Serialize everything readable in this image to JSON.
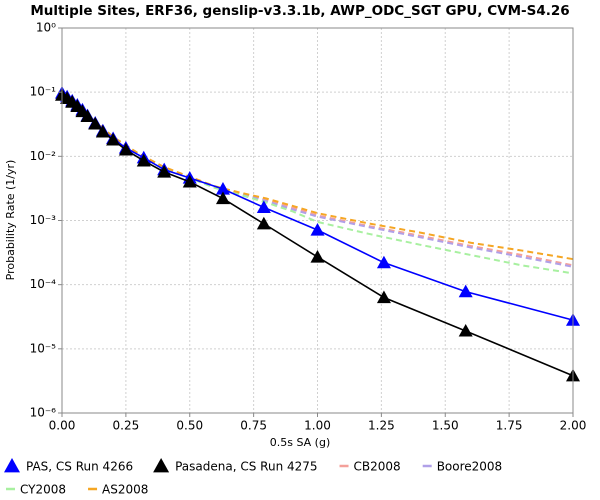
{
  "chart_data": {
    "type": "line",
    "title": "Multiple Sites, ERF36, genslip-v3.3.1b, AWP_ODC_SGT GPU, CVM-S4.26",
    "x_label": "0.5s SA (g)",
    "y_label": "Probability Rate (1/yr)",
    "log_y": true,
    "grid": true,
    "legend": "bottom",
    "xlim": [
      0,
      2
    ],
    "xticks": [
      {
        "value": 0,
        "label": "0.00"
      },
      {
        "value": 0.25,
        "label": "0.25"
      },
      {
        "value": 0.5,
        "label": "0.50"
      },
      {
        "value": 0.75,
        "label": "0.75"
      },
      {
        "value": 1,
        "label": "1.00"
      },
      {
        "value": 1.25,
        "label": "1.25"
      },
      {
        "value": 1.5,
        "label": "1.50"
      },
      {
        "value": 1.75,
        "label": "1.75"
      },
      {
        "value": 2,
        "label": "2.00"
      }
    ],
    "ylim": [
      1e-06,
      1
    ],
    "yticks": [
      {
        "value": 1,
        "label": "10⁰"
      },
      {
        "value": 0.1,
        "label": "10⁻¹"
      },
      {
        "value": 0.01,
        "label": "10⁻²"
      },
      {
        "value": 0.001,
        "label": "10⁻³"
      },
      {
        "value": 0.0001,
        "label": "10⁻⁴"
      },
      {
        "value": 1e-05,
        "label": "10⁻⁵"
      },
      {
        "value": 1e-06,
        "label": "10⁻⁶"
      }
    ],
    "series": [
      {
        "name": "PAS, CS Run 4266",
        "color": "#0000ff",
        "marker": "triangle",
        "x": [
          0,
          0.02,
          0.04,
          0.06,
          0.08,
          0.1,
          0.13,
          0.16,
          0.2,
          0.25,
          0.32,
          0.4,
          0.5,
          0.63,
          0.79,
          1.0,
          1.26,
          1.58,
          2.0
        ],
        "values": [
          0.097,
          0.085,
          0.073,
          0.063,
          0.053,
          0.043,
          0.033,
          0.025,
          0.019,
          0.0135,
          0.0095,
          0.0062,
          0.0046,
          0.0031,
          0.0016,
          0.00071,
          0.00022,
          7.8e-05,
          2.8e-05
        ]
      },
      {
        "name": "Pasadena, CS Run 4275",
        "color": "#000000",
        "marker": "triangle",
        "x": [
          0,
          0.02,
          0.04,
          0.06,
          0.08,
          0.1,
          0.13,
          0.16,
          0.2,
          0.25,
          0.32,
          0.4,
          0.5,
          0.63,
          0.79,
          1.0,
          1.26,
          1.58,
          2.0
        ],
        "values": [
          0.09,
          0.08,
          0.07,
          0.06,
          0.05,
          0.042,
          0.032,
          0.024,
          0.018,
          0.0126,
          0.0085,
          0.0057,
          0.004,
          0.0022,
          0.00089,
          0.00027,
          6.3e-05,
          1.9e-05,
          3.8e-06
        ]
      },
      {
        "name": "CB2008",
        "color": "#f4a09a",
        "dash": true,
        "x": [
          0,
          0.1,
          0.2,
          0.3,
          0.4,
          0.5,
          0.6,
          0.7,
          0.8,
          0.9,
          1.0,
          1.2,
          1.4,
          1.6,
          1.8,
          2.0
        ],
        "values": [
          0.095,
          0.045,
          0.02,
          0.011,
          0.0067,
          0.0047,
          0.0033,
          0.0026,
          0.0021,
          0.0016,
          0.0012,
          0.00082,
          0.00058,
          0.0004,
          0.00029,
          0.0002
        ]
      },
      {
        "name": "Boore2008",
        "color": "#b0a0e8",
        "dash": true,
        "x": [
          0,
          0.1,
          0.2,
          0.3,
          0.4,
          0.5,
          0.6,
          0.7,
          0.8,
          0.9,
          1.0,
          1.2,
          1.4,
          1.6,
          1.8,
          2.0
        ],
        "values": [
          0.095,
          0.045,
          0.02,
          0.011,
          0.0067,
          0.0047,
          0.0033,
          0.0026,
          0.002,
          0.0015,
          0.00115,
          0.00079,
          0.00055,
          0.00038,
          0.00027,
          0.00019
        ]
      },
      {
        "name": "CY2008",
        "color": "#a8f0a0",
        "dash": true,
        "x": [
          0,
          0.1,
          0.2,
          0.3,
          0.4,
          0.5,
          0.6,
          0.7,
          0.8,
          0.9,
          1.0,
          1.2,
          1.4,
          1.6,
          1.8,
          2.0
        ],
        "values": [
          0.095,
          0.045,
          0.02,
          0.011,
          0.0066,
          0.0046,
          0.0032,
          0.0025,
          0.0019,
          0.0014,
          0.00095,
          0.00062,
          0.00042,
          0.00029,
          0.0002,
          0.00015
        ]
      },
      {
        "name": "AS2008",
        "color": "#f5a623",
        "dash": true,
        "x": [
          0,
          0.1,
          0.2,
          0.3,
          0.4,
          0.5,
          0.6,
          0.7,
          0.8,
          0.9,
          1.0,
          1.2,
          1.4,
          1.6,
          1.8,
          2.0
        ],
        "values": [
          0.095,
          0.045,
          0.02,
          0.011,
          0.0068,
          0.0048,
          0.0034,
          0.0027,
          0.0022,
          0.0017,
          0.0013,
          0.0009,
          0.00065,
          0.00045,
          0.00034,
          0.00025
        ]
      }
    ]
  }
}
